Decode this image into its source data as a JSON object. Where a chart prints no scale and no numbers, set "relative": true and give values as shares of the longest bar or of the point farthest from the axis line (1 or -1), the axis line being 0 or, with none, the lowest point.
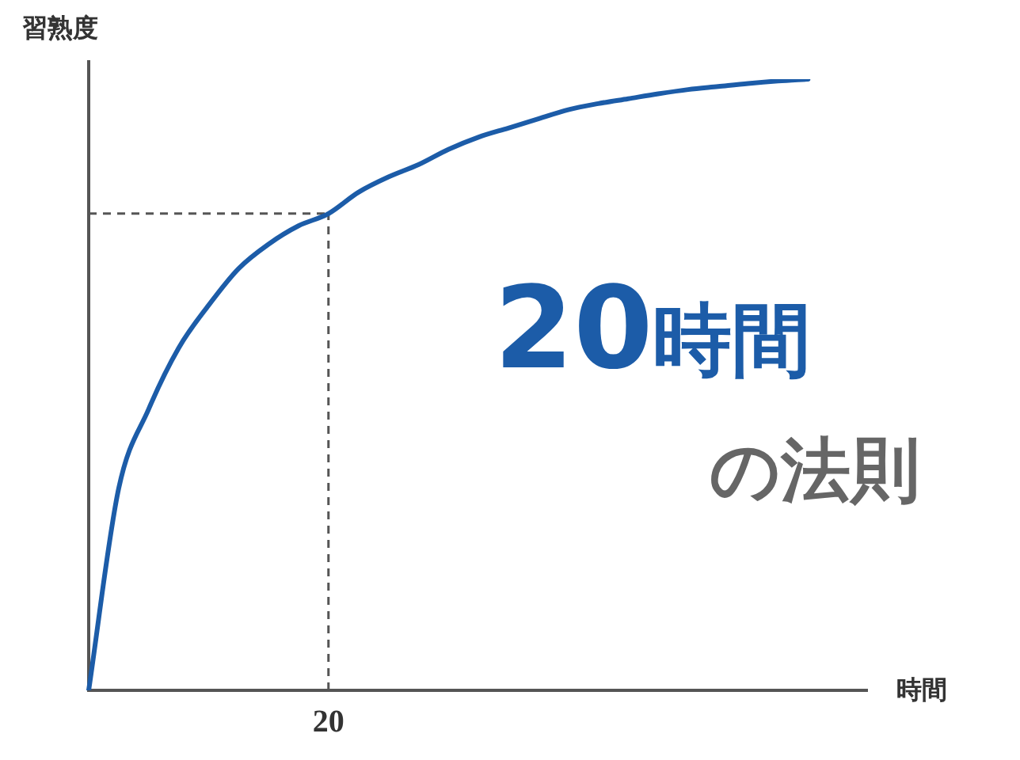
{
  "chart_data": {
    "type": "line",
    "relative": true,
    "xlabel": "時間",
    "ylabel": "習熟度",
    "categories": [
      null,
      null,
      null,
      null,
      null,
      null,
      null,
      null,
      null,
      null,
      null,
      null,
      null,
      null,
      null,
      null,
      null,
      null,
      null,
      null,
      null,
      null,
      null,
      null,
      null,
      null,
      null
    ],
    "series": [
      {
        "color": "#1c5ca8",
        "values": [
          0,
          0.33,
          0.46,
          0.56,
          0.63,
          0.69,
          0.73,
          0.76,
          0.78,
          0.815,
          0.84,
          0.86,
          0.885,
          0.905,
          0.92,
          0.935,
          0.95,
          0.96,
          0.968,
          0.976,
          0.983,
          0.988,
          0.993,
          0.997,
          1,
          null,
          null
        ]
      }
    ],
    "ref_lines": [
      {
        "axis": "y",
        "value": 0.78,
        "line_style": "dashed",
        "color": "#555555"
      }
    ],
    "annotations": [
      "20時間",
      "の法則",
      "20"
    ],
    "grid": false,
    "legend": false,
    "marker": "none",
    "line_style": "solid"
  }
}
